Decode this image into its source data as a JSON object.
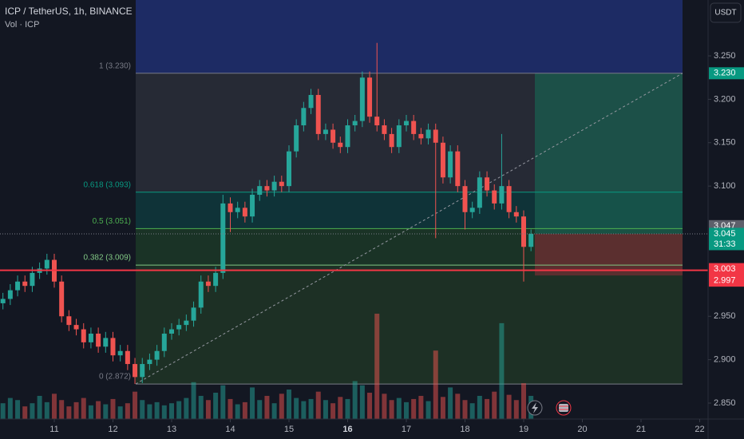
{
  "header": {
    "symbol": "ICP / TetherUS, 1h, BINANCE",
    "volume_label": "Vol · ICP",
    "currency": "USDT"
  },
  "chart_data": {
    "type": "candlestick",
    "up_color": "#26a69a",
    "down_color": "#ef5350",
    "xlim": [
      10.075,
      22.143
    ],
    "xticks": [
      11,
      12,
      13,
      14,
      15,
      16,
      17,
      18,
      19,
      20,
      21,
      22
    ],
    "bold_xtick": 16,
    "ylim": [
      2.8316,
      3.3144
    ],
    "yticks": [
      {
        "value": 3.25,
        "label": "3.250"
      },
      {
        "value": 3.2,
        "label": "3.200"
      },
      {
        "value": 3.15,
        "label": "3.150"
      },
      {
        "value": 3.1,
        "label": "3.100"
      },
      {
        "value": 2.95,
        "label": "2.950"
      },
      {
        "value": 2.9,
        "label": "2.900"
      },
      {
        "value": 2.85,
        "label": "2.850"
      }
    ],
    "x": [
      10.125,
      10.25,
      10.375,
      10.5,
      10.625,
      10.75,
      10.875,
      11,
      11.125,
      11.25,
      11.375,
      11.5,
      11.625,
      11.75,
      11.875,
      12,
      12.125,
      12.25,
      12.375,
      12.5,
      12.625,
      12.75,
      12.875,
      13,
      13.125,
      13.25,
      13.375,
      13.5,
      13.625,
      13.75,
      13.875,
      14,
      14.125,
      14.25,
      14.375,
      14.5,
      14.625,
      14.75,
      14.875,
      15,
      15.125,
      15.25,
      15.375,
      15.5,
      15.625,
      15.75,
      15.875,
      16,
      16.125,
      16.25,
      16.375,
      16.5,
      16.625,
      16.75,
      16.875,
      17,
      17.125,
      17.25,
      17.375,
      17.5,
      17.625,
      17.75,
      17.875,
      18,
      18.125,
      18.25,
      18.375,
      18.5,
      18.625,
      18.75,
      18.875,
      19,
      19.125
    ],
    "candles": [
      [
        2.965,
        2.977,
        2.958,
        2.97
      ],
      [
        2.97,
        2.987,
        2.963,
        2.98
      ],
      [
        2.98,
        2.997,
        2.973,
        2.99
      ],
      [
        2.99,
        2.997,
        2.978,
        2.985
      ],
      [
        2.985,
        3.007,
        2.978,
        3.0
      ],
      [
        3.0,
        3.012,
        2.993,
        3.005
      ],
      [
        3.005,
        3.022,
        2.998,
        3.015
      ],
      [
        3.015,
        3.022,
        2.983,
        2.99
      ],
      [
        2.99,
        2.997,
        2.943,
        2.95
      ],
      [
        2.95,
        2.957,
        2.933,
        2.94
      ],
      [
        2.94,
        2.947,
        2.928,
        2.935
      ],
      [
        2.935,
        2.942,
        2.913,
        2.92
      ],
      [
        2.92,
        2.937,
        2.913,
        2.93
      ],
      [
        2.93,
        2.937,
        2.908,
        2.915
      ],
      [
        2.915,
        2.932,
        2.908,
        2.925
      ],
      [
        2.925,
        2.932,
        2.898,
        2.905
      ],
      [
        2.905,
        2.917,
        2.898,
        2.91
      ],
      [
        2.91,
        2.917,
        2.888,
        2.895
      ],
      [
        2.895,
        2.902,
        2.872,
        2.88
      ],
      [
        2.88,
        2.902,
        2.873,
        2.895
      ],
      [
        2.895,
        2.907,
        2.888,
        2.9
      ],
      [
        2.9,
        2.917,
        2.893,
        2.91
      ],
      [
        2.91,
        2.937,
        2.903,
        2.93
      ],
      [
        2.93,
        2.942,
        2.923,
        2.935
      ],
      [
        2.935,
        2.947,
        2.928,
        2.94
      ],
      [
        2.94,
        2.952,
        2.933,
        2.945
      ],
      [
        2.945,
        2.967,
        2.938,
        2.96
      ],
      [
        2.96,
        2.997,
        2.953,
        2.99
      ],
      [
        2.99,
        2.997,
        2.978,
        2.985
      ],
      [
        2.985,
        3.007,
        2.978,
        3.0
      ],
      [
        3.0,
        3.09,
        2.993,
        3.08
      ],
      [
        3.08,
        3.087,
        3.047,
        3.07
      ],
      [
        3.07,
        3.082,
        3.063,
        3.075
      ],
      [
        3.075,
        3.082,
        3.058,
        3.065
      ],
      [
        3.065,
        3.097,
        3.058,
        3.09
      ],
      [
        3.09,
        3.107,
        3.083,
        3.1
      ],
      [
        3.1,
        3.107,
        3.088,
        3.095
      ],
      [
        3.095,
        3.112,
        3.088,
        3.105
      ],
      [
        3.105,
        3.112,
        3.093,
        3.1
      ],
      [
        3.1,
        3.147,
        3.093,
        3.14
      ],
      [
        3.14,
        3.177,
        3.133,
        3.17
      ],
      [
        3.17,
        3.197,
        3.163,
        3.19
      ],
      [
        3.19,
        3.212,
        3.183,
        3.205
      ],
      [
        3.205,
        3.212,
        3.153,
        3.16
      ],
      [
        3.16,
        3.172,
        3.153,
        3.165
      ],
      [
        3.165,
        3.172,
        3.143,
        3.15
      ],
      [
        3.15,
        3.157,
        3.138,
        3.145
      ],
      [
        3.145,
        3.177,
        3.138,
        3.17
      ],
      [
        3.17,
        3.182,
        3.163,
        3.175
      ],
      [
        3.175,
        3.232,
        3.168,
        3.225
      ],
      [
        3.225,
        3.232,
        3.173,
        3.18
      ],
      [
        3.18,
        3.265,
        3.163,
        3.17
      ],
      [
        3.17,
        3.177,
        3.153,
        3.16
      ],
      [
        3.16,
        3.167,
        3.138,
        3.145
      ],
      [
        3.145,
        3.177,
        3.138,
        3.17
      ],
      [
        3.17,
        3.182,
        3.163,
        3.175
      ],
      [
        3.175,
        3.182,
        3.153,
        3.16
      ],
      [
        3.16,
        3.167,
        3.148,
        3.155
      ],
      [
        3.155,
        3.172,
        3.148,
        3.165
      ],
      [
        3.165,
        3.172,
        3.04,
        3.15
      ],
      [
        3.15,
        3.157,
        3.103,
        3.11
      ],
      [
        3.11,
        3.147,
        3.103,
        3.14
      ],
      [
        3.14,
        3.147,
        3.093,
        3.1
      ],
      [
        3.1,
        3.107,
        3.05,
        3.07
      ],
      [
        3.07,
        3.082,
        3.063,
        3.075
      ],
      [
        3.075,
        3.117,
        3.068,
        3.11
      ],
      [
        3.11,
        3.117,
        3.088,
        3.095
      ],
      [
        3.095,
        3.102,
        3.073,
        3.08
      ],
      [
        3.08,
        3.16,
        3.073,
        3.1
      ],
      [
        3.1,
        3.107,
        3.063,
        3.07
      ],
      [
        3.07,
        3.077,
        3.058,
        3.065
      ],
      [
        3.065,
        3.072,
        2.99,
        3.03
      ],
      [
        3.03,
        3.05,
        3.025,
        3.045
      ]
    ],
    "volume": [
      1.5,
      2,
      1.8,
      1.2,
      1.5,
      2.2,
      1.6,
      2.4,
      1.8,
      1.2,
      1.6,
      2.0,
      1.3,
      1.7,
      1.4,
      1.9,
      1.2,
      1.5,
      2.6,
      1.8,
      1.4,
      1.6,
      1.3,
      1.5,
      1.7,
      2.0,
      3.5,
      2.2,
      1.8,
      2.5,
      3.2,
      1.9,
      1.4,
      1.6,
      3.0,
      1.8,
      2.2,
      1.5,
      2.4,
      2.8,
      2.0,
      1.7,
      1.9,
      2.6,
      1.8,
      1.5,
      2.1,
      1.9,
      3.6,
      3.2,
      2.5,
      10,
      2.4,
      1.8,
      2.0,
      1.6,
      1.9,
      2.2,
      1.7,
      6.5,
      2.1,
      3.0,
      2.4,
      1.8,
      1.5,
      2.2,
      1.9,
      2.6,
      9.1,
      2.3,
      1.8,
      3.4,
      2.2
    ],
    "fibonacci": [
      {
        "label": "1 (3.230)",
        "value": 3.23,
        "color": "#787b86",
        "fill": "#262a35"
      },
      {
        "label": "0.618 (3.093)",
        "value": 3.093,
        "color": "#089981",
        "fill": "#0f3338"
      },
      {
        "label": "0.5 (3.051)",
        "value": 3.051,
        "color": "#4caf50",
        "fill": "#1a3326"
      },
      {
        "label": "0.382 (3.009)",
        "value": 3.009,
        "color": "#81c784",
        "fill": "#1d3025"
      },
      {
        "label": "0 (2.872)",
        "value": 2.872,
        "color": "#787b86"
      }
    ],
    "position": {
      "target": 3.23,
      "entry": 3.045,
      "stop": 2.997
    },
    "horizontal_line": {
      "value": 3.003,
      "color": "#f23645"
    },
    "price_labels": [
      {
        "value": 3.23,
        "label": "3.230",
        "color": "#089981"
      },
      {
        "value": 3.047,
        "label": "3.047",
        "color": "#5d606b"
      },
      {
        "value": 3.045,
        "label": "3.045",
        "color": "#089981",
        "countdown": "31:33"
      },
      {
        "value": 3.003,
        "label": "3.003",
        "color": "#f23645"
      },
      {
        "value": 2.997,
        "label": "2.997",
        "color": "#f23645"
      }
    ]
  }
}
